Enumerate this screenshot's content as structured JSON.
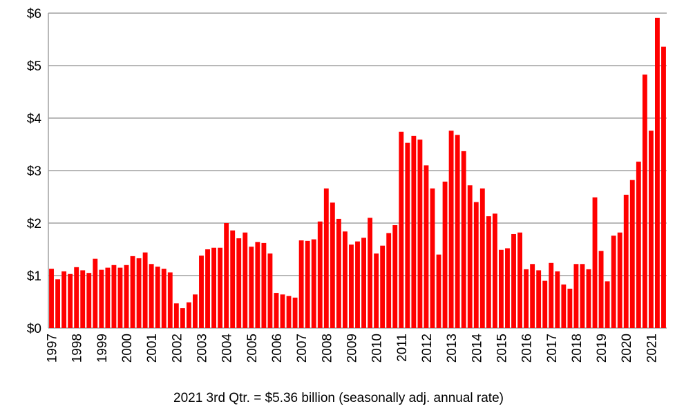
{
  "chart_data": {
    "type": "bar",
    "x_label": "2021 3rd Qtr. = $5.36 billion (seasonally adj. annual rate)",
    "categories": [
      "1997",
      null,
      null,
      null,
      "1998",
      null,
      null,
      null,
      "1999",
      null,
      null,
      null,
      "2000",
      null,
      null,
      null,
      "2001",
      null,
      null,
      null,
      "2002",
      null,
      null,
      null,
      "2003",
      null,
      null,
      null,
      "2004",
      null,
      null,
      null,
      "2005",
      null,
      null,
      null,
      "2006",
      null,
      null,
      null,
      "2007",
      null,
      null,
      null,
      "2008",
      null,
      null,
      null,
      "2009",
      null,
      null,
      null,
      "2010",
      null,
      null,
      null,
      "2011",
      null,
      null,
      null,
      "2012",
      null,
      null,
      null,
      "2013",
      null,
      null,
      null,
      "2014",
      null,
      null,
      null,
      "2015",
      null,
      null,
      null,
      "2016",
      null,
      null,
      null,
      "2017",
      null,
      null,
      null,
      "2018",
      null,
      null,
      null,
      "2019",
      null,
      null,
      null,
      "2020",
      null,
      null,
      null,
      "2021",
      null,
      null
    ],
    "values": [
      1.13,
      0.93,
      1.08,
      1.03,
      1.16,
      1.1,
      1.05,
      1.32,
      1.11,
      1.15,
      1.2,
      1.15,
      1.2,
      1.37,
      1.33,
      1.44,
      1.22,
      1.17,
      1.13,
      1.06,
      0.47,
      0.38,
      0.49,
      0.64,
      1.38,
      1.5,
      1.53,
      1.53,
      2.0,
      1.86,
      1.71,
      1.82,
      1.55,
      1.64,
      1.62,
      1.42,
      0.67,
      0.64,
      0.61,
      0.58,
      1.67,
      1.66,
      1.69,
      2.03,
      2.66,
      2.39,
      2.08,
      1.84,
      1.59,
      1.65,
      1.72,
      2.1,
      1.42,
      1.57,
      1.81,
      1.96,
      3.74,
      3.53,
      3.66,
      3.59,
      3.1,
      2.66,
      1.4,
      2.79,
      3.76,
      3.68,
      3.37,
      2.72,
      2.4,
      2.66,
      2.13,
      2.18,
      1.49,
      1.52,
      1.79,
      1.82,
      1.12,
      1.22,
      1.1,
      0.9,
      1.24,
      1.08,
      0.83,
      0.75,
      1.22,
      1.22,
      1.12,
      2.49,
      1.47,
      0.89,
      1.76,
      1.82,
      2.54,
      2.82,
      3.17,
      4.83,
      3.76,
      5.91,
      5.36
    ],
    "color": "#ff0000",
    "ylim": [
      0,
      6
    ],
    "yticks": [
      {
        "value": 0,
        "label": "$0"
      },
      {
        "value": 1,
        "label": "$1"
      },
      {
        "value": 2,
        "label": "$2"
      },
      {
        "value": 3,
        "label": "$3"
      },
      {
        "value": 4,
        "label": "$4"
      },
      {
        "value": 5,
        "label": "$5"
      },
      {
        "value": 6,
        "label": "$6"
      }
    ],
    "grid": true
  }
}
